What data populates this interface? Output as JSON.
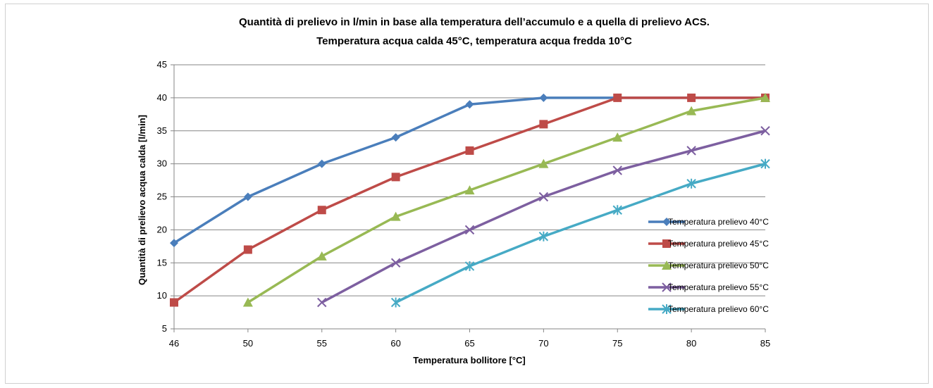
{
  "chart_data": {
    "type": "line",
    "title": "Quantità di prelievo in l/min in base alla temperatura dell’accumulo e a quella di prelievo ACS.",
    "subtitle": "Temperatura acqua calda 45°C, temperatura acqua fredda 10°C",
    "xlabel": "Temperatura bollitore [°C]",
    "ylabel": "Quantità di prelievo acqua calda [l/min]",
    "x_categories": [
      "46",
      "50",
      "55",
      "60",
      "65",
      "70",
      "75",
      "80",
      "85"
    ],
    "ylim": [
      5,
      45
    ],
    "yticks": [
      5,
      10,
      15,
      20,
      25,
      30,
      35,
      40,
      45
    ],
    "grid": "horizontal",
    "legend_position": "right",
    "series": [
      {
        "name": "Temperatura prelievo 40°C",
        "color": "#4a7ebb",
        "marker": "diamond",
        "points": [
          [
            0,
            18
          ],
          [
            1,
            25
          ],
          [
            2,
            30
          ],
          [
            3,
            34
          ],
          [
            4,
            39
          ],
          [
            5,
            40
          ],
          [
            6,
            40
          ],
          [
            7,
            40
          ],
          [
            8,
            40
          ]
        ]
      },
      {
        "name": "Temperatura prelievo 45°C",
        "color": "#be4b48",
        "marker": "square",
        "points": [
          [
            0,
            9
          ],
          [
            1,
            17
          ],
          [
            2,
            23
          ],
          [
            3,
            28
          ],
          [
            4,
            32
          ],
          [
            5,
            36
          ],
          [
            6,
            40
          ],
          [
            7,
            40
          ],
          [
            8,
            40
          ]
        ]
      },
      {
        "name": "Temperatura prelievo 50°C",
        "color": "#98b954",
        "marker": "triangle",
        "points": [
          [
            1,
            9
          ],
          [
            2,
            16
          ],
          [
            3,
            22
          ],
          [
            4,
            26
          ],
          [
            5,
            30
          ],
          [
            6,
            34
          ],
          [
            7,
            38
          ],
          [
            8,
            40
          ]
        ]
      },
      {
        "name": "Temperatura prelievo 55°C",
        "color": "#7d5fa0",
        "marker": "x",
        "points": [
          [
            2,
            9
          ],
          [
            3,
            15
          ],
          [
            4,
            20
          ],
          [
            5,
            25
          ],
          [
            6,
            29
          ],
          [
            7,
            32
          ],
          [
            8,
            35
          ]
        ]
      },
      {
        "name": "Temperatura prelievo 60°C",
        "color": "#46aac5",
        "marker": "star",
        "points": [
          [
            3,
            9
          ],
          [
            4,
            14.5
          ],
          [
            5,
            19
          ],
          [
            6,
            23
          ],
          [
            7,
            27
          ],
          [
            8,
            30
          ]
        ]
      }
    ]
  }
}
